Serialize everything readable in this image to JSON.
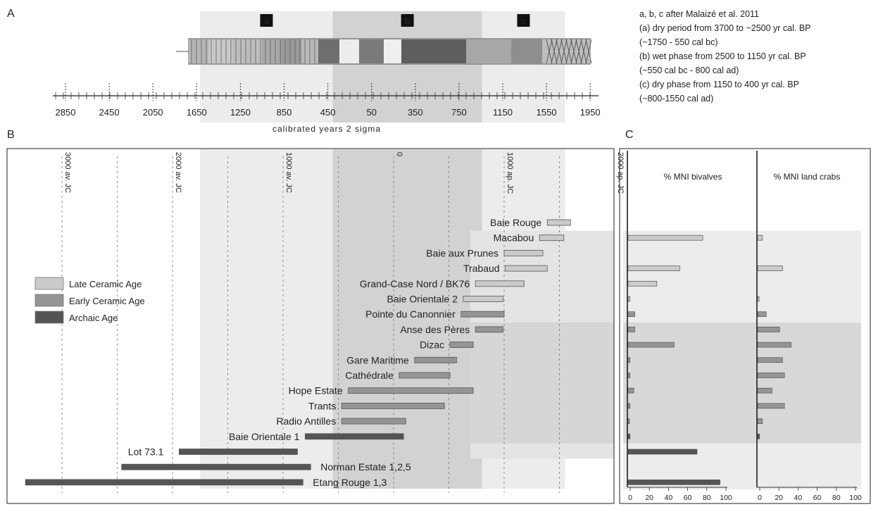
{
  "panel_letters": [
    "A",
    "B",
    "C"
  ],
  "phases": [
    {
      "label": "a",
      "from": 1750,
      "to": 550,
      "color": "#ececec"
    },
    {
      "label": "b",
      "from": 550,
      "to": 800,
      "color": "#d2d2d4"
    },
    {
      "label": "c",
      "from": 800,
      "to": 1550,
      "color": "#ececec"
    }
  ],
  "notes": [
    "a, b, c after Malaizé et al. 2011",
    "(a) dry period from 3700 to ~2500 yr cal. BP",
    "(~1750 - 550 cal bc)",
    "(b) wet phase from 2500 to 1150 yr cal. BP",
    "(~550 cal bc - 800 cal ad)",
    "(c) dry phase from 1150 to 400 yr cal. BP",
    "(~800-1550 cal ad)"
  ],
  "axis_a": {
    "ticks": [
      "2850",
      "2450",
      "2050",
      "1650",
      "1250",
      "850",
      "450",
      "50",
      "350",
      "750",
      "1150",
      "1550",
      "1950"
    ],
    "caption": "calibrated years 2 sigma"
  },
  "axis_b": {
    "ticks": [
      "3000 av. JC",
      "2000 av. JC",
      "1000 av. JC",
      "0",
      "1000 ap. JC",
      "2000 ap. JC"
    ]
  },
  "legend": [
    {
      "label": "Late Ceramic Age",
      "color": "#cbcbcb"
    },
    {
      "label": "Early Ceramic Age",
      "color": "#959595"
    },
    {
      "label": "Archaic Age",
      "color": "#555555"
    }
  ],
  "colors": {
    "late": "#cbcbcb",
    "early": "#959595",
    "archaic": "#555555",
    "band": "#e6e6e6"
  },
  "chart_data": [
    {
      "type": "bar",
      "orientation": "horizontal-range",
      "x_units": "calendar years (negative = av. JC / BC, positive = ap. JC / AD)",
      "sites": [
        {
          "name": "Baie Rouge",
          "start": 1390,
          "end": 1600,
          "age": "late"
        },
        {
          "name": "Macabou",
          "start": 1320,
          "end": 1540,
          "age": "late"
        },
        {
          "name": "Baie aux Prunes",
          "start": 1000,
          "end": 1350,
          "age": "late"
        },
        {
          "name": "Trabaud",
          "start": 1010,
          "end": 1390,
          "age": "late"
        },
        {
          "name": "Grand-Case Nord / BK76",
          "start": 740,
          "end": 1180,
          "age": "late"
        },
        {
          "name": "Baie Orientale 2",
          "start": 630,
          "end": 990,
          "age": "late"
        },
        {
          "name": "Pointe du Canonnier",
          "start": 610,
          "end": 1000,
          "age": "early"
        },
        {
          "name": "Anse des Pères",
          "start": 740,
          "end": 990,
          "age": "early"
        },
        {
          "name": "Dizac",
          "start": 510,
          "end": 720,
          "age": "early"
        },
        {
          "name": "Gare Maritime",
          "start": 190,
          "end": 570,
          "age": "early"
        },
        {
          "name": "Cathédrale",
          "start": 50,
          "end": 510,
          "age": "early"
        },
        {
          "name": "Hope Estate",
          "start": -410,
          "end": 720,
          "age": "early"
        },
        {
          "name": "Trants",
          "start": -470,
          "end": 460,
          "age": "early"
        },
        {
          "name": "Radio Antilles",
          "start": -470,
          "end": 110,
          "age": "early"
        },
        {
          "name": "Baie Orientale 1",
          "start": -800,
          "end": 90,
          "age": "archaic"
        },
        {
          "name": "Lot 73.1",
          "start": -1940,
          "end": -870,
          "age": "archaic"
        },
        {
          "name": "Norman Estate 1,2,5",
          "start": -2460,
          "end": -750,
          "age": "archaic"
        },
        {
          "name": "Etang Rouge 1,3",
          "start": -3330,
          "end": -820,
          "age": "archaic"
        }
      ]
    },
    {
      "type": "bar",
      "title": "% MNI bivalves",
      "xlim": [
        0,
        100
      ],
      "ticks": [
        "0",
        "20",
        "40",
        "60",
        "80",
        "100"
      ],
      "values": [
        null,
        78,
        null,
        54,
        30,
        2,
        7,
        7,
        48,
        2,
        2,
        6,
        2,
        1,
        2,
        72,
        null,
        96
      ]
    },
    {
      "type": "bar",
      "title": "% MNI land crabs",
      "xlim": [
        0,
        100
      ],
      "ticks": [
        "0",
        "20",
        "40",
        "60",
        "80",
        "100"
      ],
      "values": [
        null,
        5,
        null,
        26,
        null,
        1,
        9,
        23,
        35,
        26,
        28,
        15,
        28,
        5,
        2,
        null,
        null,
        null
      ]
    }
  ]
}
